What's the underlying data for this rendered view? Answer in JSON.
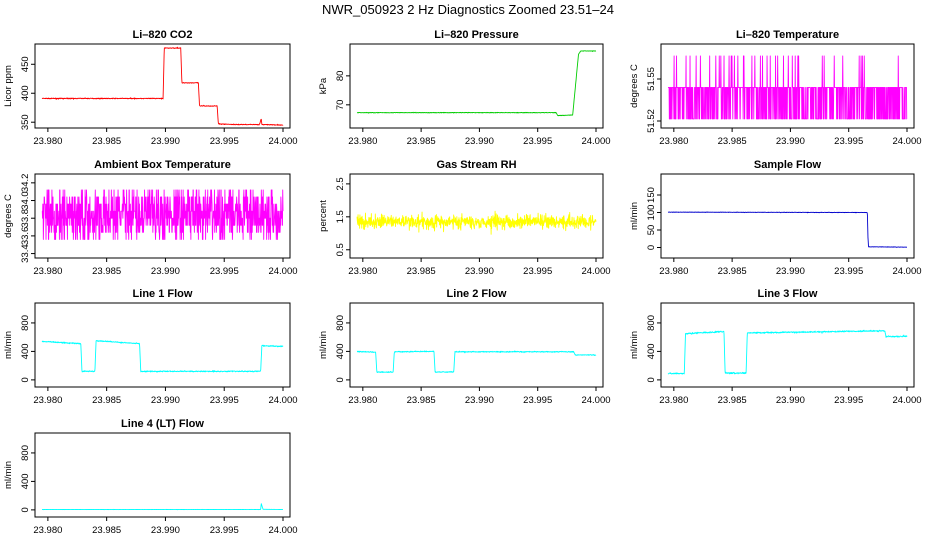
{
  "figure_title": "NWR_050923  2 Hz Diagnostics Zoomed 23.51–24",
  "chart_data": [
    {
      "type": "line",
      "title": "Li–820 CO2",
      "ylabel": "Licor ppm",
      "color": "#ff0000",
      "xlim": [
        23.9795,
        24.0
      ],
      "ylim": [
        340,
        485
      ],
      "xticks": [
        "23.980",
        "23.985",
        "23.990",
        "23.995",
        "24.000"
      ],
      "xtick_values": [
        23.98,
        23.985,
        23.99,
        23.995,
        24.0
      ],
      "yticks": [
        "350",
        "400",
        "450"
      ],
      "ytick_values": [
        350,
        400,
        450
      ],
      "noise": 1.0,
      "series": [
        {
          "x": [
            23.9795,
            23.9898,
            23.9899,
            23.9913,
            23.9914,
            23.9928,
            23.9929,
            23.9944,
            23.9945,
            23.996,
            23.998,
            23.99815,
            23.9982,
            24.0
          ],
          "y": [
            391,
            391,
            478,
            478,
            418,
            418,
            378,
            378,
            347,
            346,
            346,
            356,
            346,
            345
          ]
        }
      ]
    },
    {
      "type": "line",
      "title": "Li–820 Pressure",
      "ylabel": "kPa",
      "color": "#00cc00",
      "xlim": [
        23.9795,
        24.0
      ],
      "ylim": [
        62,
        91
      ],
      "xticks": [
        "23.980",
        "23.985",
        "23.990",
        "23.995",
        "24.000"
      ],
      "xtick_values": [
        23.98,
        23.985,
        23.99,
        23.995,
        24.0
      ],
      "yticks": [
        "70",
        "80"
      ],
      "ytick_values": [
        70,
        80
      ],
      "noise": 0.15,
      "series": [
        {
          "x": [
            23.9795,
            23.9966,
            23.9967,
            23.998,
            23.9985,
            23.9987,
            24.0
          ],
          "y": [
            67.3,
            67.3,
            66.3,
            66.5,
            87.5,
            88.6,
            88.6
          ]
        }
      ]
    },
    {
      "type": "line",
      "title": "Li–820 Temperature",
      "ylabel": "degrees C",
      "color": "#ff00ff",
      "xlim": [
        23.9795,
        24.0
      ],
      "ylim": [
        51.515,
        51.575
      ],
      "xticks": [
        "23.980",
        "23.985",
        "23.990",
        "23.995",
        "24.000"
      ],
      "xtick_values": [
        23.98,
        23.985,
        23.99,
        23.995,
        24.0
      ],
      "yticks": [
        "51.52",
        "51.55"
      ],
      "ytick_values": [
        51.52,
        51.55
      ],
      "levels": [
        51.5215,
        51.544,
        51.5665
      ],
      "level_weights": [
        0.35,
        0.6,
        0.05
      ],
      "series": [
        {
          "x": [
            23.9795,
            24.0
          ],
          "y": [
            51.544,
            51.544
          ]
        }
      ]
    },
    {
      "type": "line",
      "title": "Ambient Box Temperature",
      "ylabel": "degrees C",
      "color": "#ff00ff",
      "xlim": [
        23.9795,
        24.0
      ],
      "ylim": [
        33.35,
        34.3
      ],
      "xticks": [
        "23.980",
        "23.985",
        "23.990",
        "23.995",
        "24.000"
      ],
      "xtick_values": [
        23.98,
        23.985,
        23.99,
        23.995,
        24.0
      ],
      "yticks": [
        "33.4",
        "33.6",
        "33.8",
        "34.0",
        "34.2"
      ],
      "ytick_values": [
        33.4,
        33.6,
        33.8,
        34.0,
        34.2
      ],
      "levels": [
        33.56,
        33.64,
        33.72,
        33.8,
        33.88,
        33.96,
        34.04,
        34.12
      ],
      "level_weights": [
        0.08,
        0.1,
        0.14,
        0.18,
        0.18,
        0.14,
        0.1,
        0.08
      ],
      "series": [
        {
          "x": [
            23.9795,
            24.0
          ],
          "y": [
            33.84,
            33.84
          ]
        }
      ]
    },
    {
      "type": "line",
      "title": "Gas Stream RH",
      "ylabel": "percent",
      "color": "#ffff00",
      "xlim": [
        23.9795,
        24.0
      ],
      "ylim": [
        0.25,
        2.8
      ],
      "xticks": [
        "23.980",
        "23.985",
        "23.990",
        "23.995",
        "24.000"
      ],
      "xtick_values": [
        23.98,
        23.985,
        23.99,
        23.995,
        24.0
      ],
      "yticks": [
        "0.5",
        "1.5",
        "2.5"
      ],
      "ytick_values": [
        0.5,
        1.5,
        2.5
      ],
      "noise": 0.3,
      "series": [
        {
          "x": [
            23.9795,
            24.0
          ],
          "y": [
            1.35,
            1.35
          ]
        }
      ]
    },
    {
      "type": "line",
      "title": "Sample Flow",
      "ylabel": "ml/min",
      "color": "#0000cc",
      "xlim": [
        23.9795,
        24.0
      ],
      "ylim": [
        -30,
        210
      ],
      "xticks": [
        "23.980",
        "23.985",
        "23.990",
        "23.995",
        "24.000"
      ],
      "xtick_values": [
        23.98,
        23.985,
        23.99,
        23.995,
        24.0
      ],
      "yticks": [
        "0",
        "50",
        "100",
        "150"
      ],
      "ytick_values": [
        0,
        50,
        100,
        150
      ],
      "noise": 0.8,
      "series": [
        {
          "x": [
            23.9795,
            23.9966,
            23.99665,
            23.9967,
            24.0
          ],
          "y": [
            101,
            100,
            30,
            2,
            1
          ]
        }
      ]
    },
    {
      "type": "line",
      "title": "Line 1 Flow",
      "ylabel": "ml/min",
      "color": "#00ffff",
      "xlim": [
        23.9795,
        24.0
      ],
      "ylim": [
        -100,
        1080
      ],
      "xticks": [
        "23.980",
        "23.985",
        "23.990",
        "23.995",
        "24.000"
      ],
      "xtick_values": [
        23.98,
        23.985,
        23.99,
        23.995,
        24.0
      ],
      "yticks": [
        "0",
        "400",
        "800"
      ],
      "ytick_values": [
        0,
        400,
        800
      ],
      "noise": 12,
      "series": [
        {
          "x": [
            23.9795,
            23.9828,
            23.9829,
            23.984,
            23.9841,
            23.9878,
            23.9879,
            23.9981,
            23.9982,
            24.0
          ],
          "y": [
            540,
            510,
            120,
            120,
            550,
            510,
            120,
            120,
            480,
            470
          ]
        }
      ]
    },
    {
      "type": "line",
      "title": "Line 2 Flow",
      "ylabel": "ml/min",
      "color": "#00ffff",
      "xlim": [
        23.9795,
        24.0
      ],
      "ylim": [
        -100,
        1080
      ],
      "xticks": [
        "23.980",
        "23.985",
        "23.990",
        "23.995",
        "24.000"
      ],
      "xtick_values": [
        23.98,
        23.985,
        23.99,
        23.995,
        24.0
      ],
      "yticks": [
        "0",
        "400",
        "800"
      ],
      "ytick_values": [
        0,
        400,
        800
      ],
      "noise": 10,
      "series": [
        {
          "x": [
            23.9795,
            23.9811,
            23.9812,
            23.9826,
            23.9827,
            23.9861,
            23.9862,
            23.9878,
            23.9879,
            23.9981,
            23.9982,
            24.0
          ],
          "y": [
            400,
            390,
            110,
            110,
            395,
            400,
            110,
            110,
            395,
            395,
            350,
            350
          ]
        }
      ]
    },
    {
      "type": "line",
      "title": "Line 3 Flow",
      "ylabel": "ml/min",
      "color": "#00ffff",
      "xlim": [
        23.9795,
        24.0
      ],
      "ylim": [
        -100,
        1080
      ],
      "xticks": [
        "23.980",
        "23.985",
        "23.990",
        "23.995",
        "24.000"
      ],
      "xtick_values": [
        23.98,
        23.985,
        23.99,
        23.995,
        24.0
      ],
      "yticks": [
        "0",
        "400",
        "800"
      ],
      "ytick_values": [
        0,
        400,
        800
      ],
      "noise": 14,
      "series": [
        {
          "x": [
            23.9795,
            23.9809,
            23.981,
            23.9843,
            23.9844,
            23.9862,
            23.9863,
            23.9981,
            23.9982,
            24.0
          ],
          "y": [
            90,
            90,
            650,
            680,
            95,
            95,
            660,
            690,
            610,
            610
          ]
        }
      ]
    },
    {
      "type": "line",
      "title": "Line 4 (LT) Flow",
      "ylabel": "ml/min",
      "color": "#00ffff",
      "xlim": [
        23.9795,
        24.0
      ],
      "ylim": [
        -100,
        1080
      ],
      "xticks": [
        "23.980",
        "23.985",
        "23.990",
        "23.995",
        "24.000"
      ],
      "xtick_values": [
        23.98,
        23.985,
        23.99,
        23.995,
        24.0
      ],
      "yticks": [
        "0",
        "400",
        "800"
      ],
      "ytick_values": [
        0,
        400,
        800
      ],
      "noise": 2,
      "series": [
        {
          "x": [
            23.9795,
            23.9981,
            23.99815,
            23.9983,
            24.0
          ],
          "y": [
            5,
            5,
            90,
            8,
            5
          ]
        }
      ]
    }
  ]
}
